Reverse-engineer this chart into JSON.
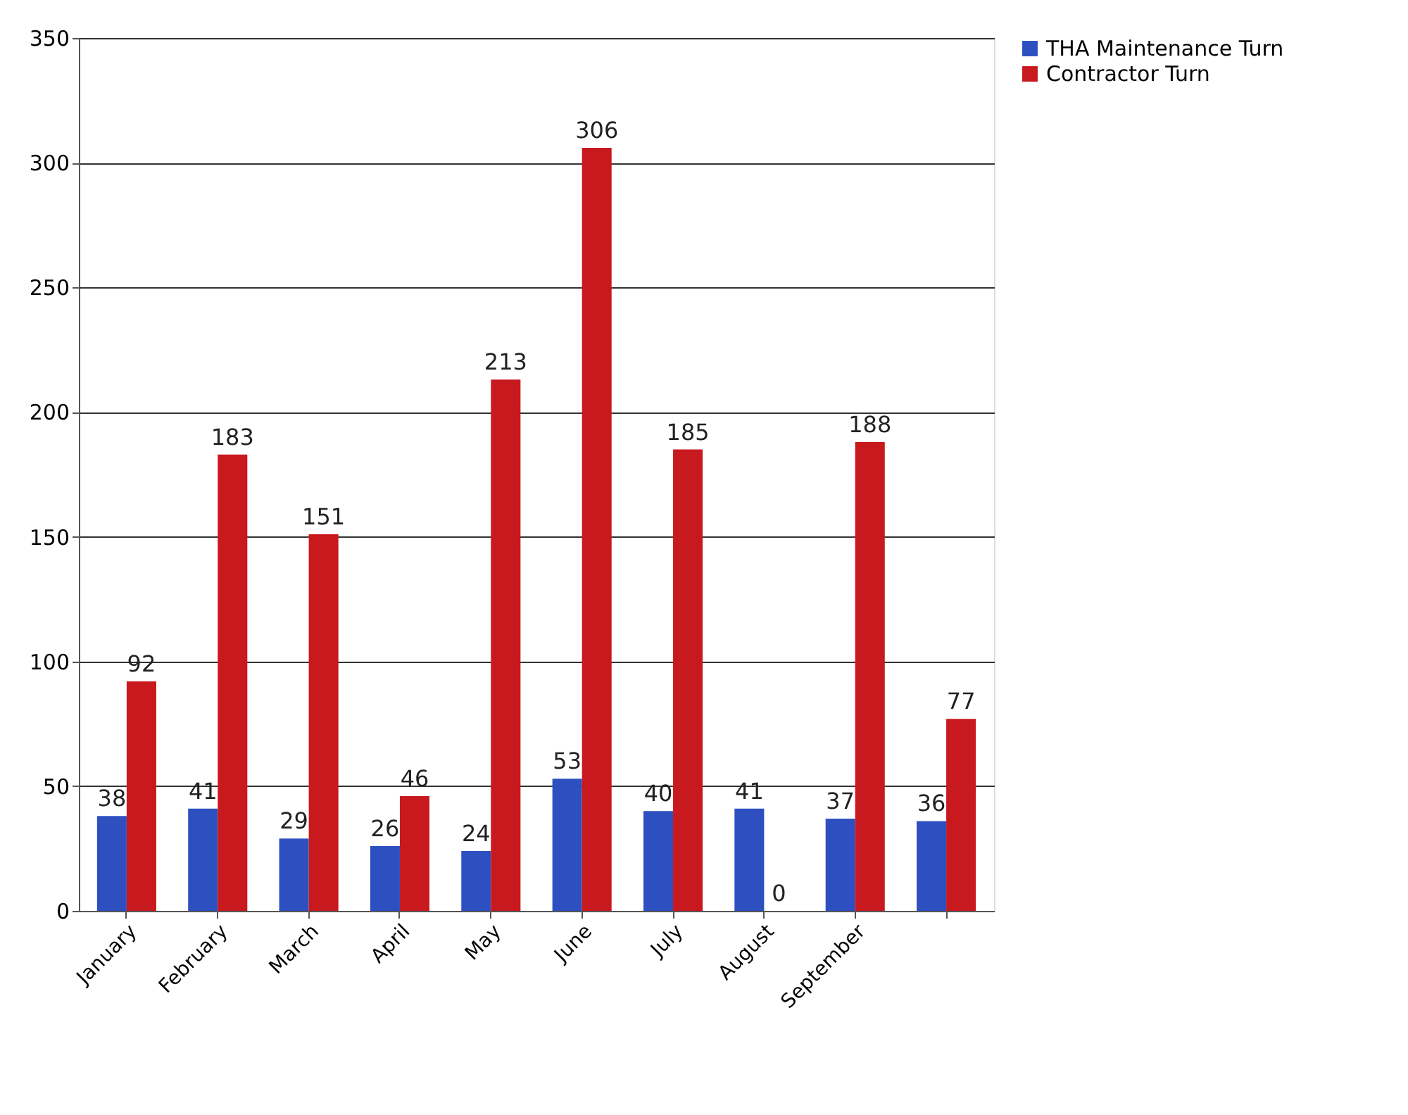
{
  "chart_data": {
    "type": "bar",
    "categories": [
      "January",
      "February",
      "March",
      "April",
      "May",
      "June",
      "July",
      "August",
      "September",
      null
    ],
    "series": [
      {
        "name": "THA Maintenance Turn",
        "color": "#2d4fc0",
        "values": [
          38,
          41,
          29,
          26,
          24,
          53,
          40,
          41,
          37,
          36
        ]
      },
      {
        "name": "Contractor Turn",
        "color": "#c8191e",
        "values": [
          92,
          183,
          151,
          46,
          213,
          306,
          185,
          0,
          188,
          77
        ]
      }
    ],
    "ylim": [
      0,
      350
    ],
    "yticks": [
      0,
      50,
      100,
      150,
      200,
      250,
      300,
      350
    ],
    "grid": "y",
    "legend": "right",
    "data_labels": true
  }
}
